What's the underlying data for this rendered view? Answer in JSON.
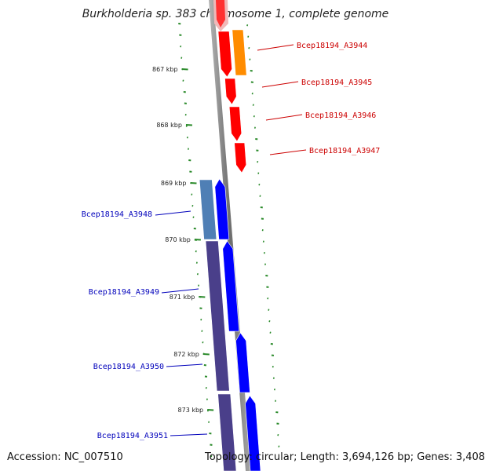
{
  "title": "Burkholderia sp. 383 chromosome 1, complete genome",
  "footer": {
    "accession": "Accession: NC_007510",
    "summary": "Topology: circular; Length: 3,694,126 bp; Genes: 3,408"
  },
  "ticks": [
    "867 kbp",
    "868 kbp",
    "869 kbp",
    "870 kbp",
    "871 kbp",
    "872 kbp",
    "873 kbp"
  ],
  "genes": [
    {
      "name": "Bcep18194_A3944",
      "strand": "forward"
    },
    {
      "name": "Bcep18194_A3945",
      "strand": "forward"
    },
    {
      "name": "Bcep18194_A3946",
      "strand": "forward"
    },
    {
      "name": "Bcep18194_A3947",
      "strand": "forward"
    },
    {
      "name": "Bcep18194_A3948",
      "strand": "reverse"
    },
    {
      "name": "Bcep18194_A3949",
      "strand": "reverse"
    },
    {
      "name": "Bcep18194_A3950",
      "strand": "reverse"
    },
    {
      "name": "Bcep18194_A3951",
      "strand": "reverse"
    }
  ],
  "colors": {
    "forward_gene": "#ff0000",
    "forward_label": "#cc0000",
    "forward_cds": "#ff8c00",
    "reverse_gene": "#0000ff",
    "reverse_label": "#0000bb",
    "reverse_cds_a": "#4f7fb5",
    "reverse_cds_b": "#4a3f8a",
    "backbone": "#888888",
    "ticks": "#2a8a2a"
  }
}
